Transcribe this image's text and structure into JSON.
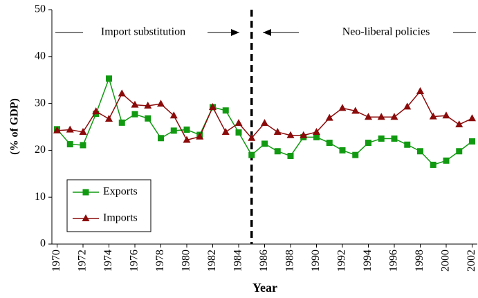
{
  "chart_data": {
    "type": "line",
    "xlabel": "Year",
    "ylabel": "(% of GDP)",
    "x": [
      1970,
      1971,
      1972,
      1973,
      1974,
      1975,
      1976,
      1977,
      1978,
      1979,
      1980,
      1981,
      1982,
      1983,
      1984,
      1985,
      1986,
      1987,
      1988,
      1989,
      1990,
      1991,
      1992,
      1993,
      1994,
      1995,
      1996,
      1997,
      1998,
      1999,
      2000,
      2001,
      2002
    ],
    "series": [
      {
        "name": "Exports",
        "color": "#119a11",
        "marker": "square",
        "values": [
          24.5,
          21.3,
          21.1,
          27.8,
          35.3,
          25.9,
          27.7,
          26.8,
          22.6,
          24.2,
          24.4,
          23.3,
          29.2,
          28.5,
          23.8,
          19.0,
          21.4,
          19.8,
          18.8,
          22.8,
          22.8,
          21.6,
          20.0,
          19.0,
          21.6,
          22.5,
          22.5,
          21.2,
          19.8,
          16.9,
          17.8,
          19.8,
          21.9
        ]
      },
      {
        "name": "Imports",
        "color": "#8b0a0a",
        "marker": "triangle",
        "values": [
          24.2,
          24.4,
          23.9,
          28.3,
          26.7,
          32.1,
          29.7,
          29.5,
          29.9,
          27.4,
          22.2,
          22.9,
          29.2,
          23.9,
          25.8,
          22.6,
          25.8,
          23.9,
          23.2,
          23.2,
          23.9,
          26.9,
          29.0,
          28.4,
          27.1,
          27.1,
          27.1,
          29.3,
          32.6,
          27.2,
          27.4,
          25.5,
          26.8
        ]
      }
    ],
    "xlim": [
      1969.6,
      2002.4
    ],
    "xticks": [
      1970,
      1972,
      1974,
      1976,
      1978,
      1980,
      1982,
      1984,
      1986,
      1988,
      1990,
      1992,
      1994,
      1996,
      1998,
      2000,
      2002
    ],
    "ylim": [
      0,
      50
    ],
    "yticks": [
      0,
      10,
      20,
      30,
      40,
      50
    ],
    "vline": 1985,
    "annotations": [
      "Import substitution",
      "Neo-liberal policies"
    ],
    "legend": "lower-left"
  }
}
